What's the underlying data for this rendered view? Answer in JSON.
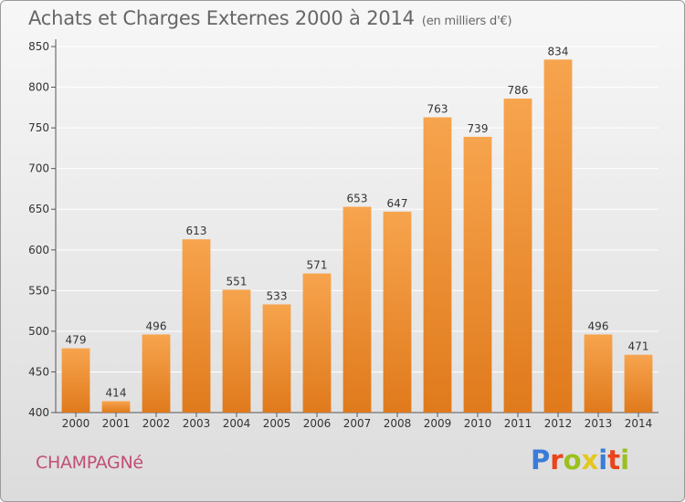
{
  "header": {
    "title": "Achats et Charges Externes 2000 à 2014",
    "unit": "(en milliers d'€)"
  },
  "footer": {
    "city": "CHAMPAGNé",
    "logo_text": "Proxiti"
  },
  "colors": {
    "bar_top": "#f7a44e",
    "bar_bottom": "#e07a1c",
    "axis_text": "#333333",
    "city": "#c04f73",
    "logo_letters": [
      "#3a7dd8",
      "#e9441b",
      "#9bc01e",
      "#e4c720",
      "#3a7dd8",
      "#e9441b",
      "#9bc01e"
    ]
  },
  "chart_data": {
    "type": "bar",
    "categories": [
      "2000",
      "2001",
      "2002",
      "2003",
      "2004",
      "2005",
      "2006",
      "2007",
      "2008",
      "2009",
      "2010",
      "2011",
      "2012",
      "2013",
      "2014"
    ],
    "values": [
      479,
      414,
      496,
      613,
      551,
      533,
      571,
      653,
      647,
      763,
      739,
      786,
      834,
      496,
      471
    ],
    "ylim": [
      400,
      850
    ],
    "yticks": [
      400,
      450,
      500,
      550,
      600,
      650,
      700,
      750,
      800,
      850
    ],
    "grid": true,
    "xlabel": "",
    "ylabel": ""
  }
}
